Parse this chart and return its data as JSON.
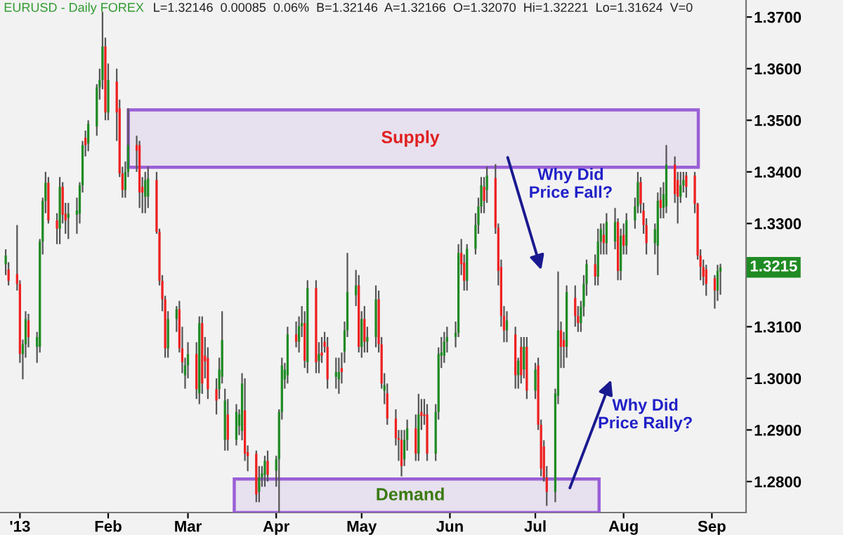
{
  "chart_data": {
    "type": "candlestick",
    "title": "EURUSD - Daily FOREX",
    "subtitle": "L=1.32146  0.00085  0.06%  B=1.32146  A=1.32166  O=1.32070  Hi=1.32221  Lo=1.31624  V=0",
    "colors": [
      "#1f8b24",
      "#f02020",
      "#f02020",
      "#f02020",
      "#1f8b24",
      "#1f8b24",
      "#f02020",
      "#1f8b24",
      "#1f8b24",
      "#1f8b24",
      "#1f8b24",
      "#f02020",
      "#f02020",
      "#1f8b24",
      "#f02020",
      "#f02020",
      "#1f8b24",
      "#1f8b24",
      "#1f8b24",
      "#1f8b24",
      "#f02020",
      "#1f8b24",
      "#1f8b24",
      "#1f8b24",
      "#1f8b24",
      "#f02020",
      "#1f8b24",
      "#f02020",
      "#f02020",
      "#f02020",
      "#1f8b24",
      "#1f8b24",
      "#f02020",
      "#f02020",
      "#f02020",
      "#1f8b24",
      "#1f8b24",
      "#f02020",
      "#f02020",
      "#f02020",
      "#f02020",
      "#1f8b24",
      "#1f8b24",
      "#f02020",
      "#f02020",
      "#1f8b24",
      "#1f8b24",
      "#f02020",
      "#1f8b24",
      "#f02020",
      "#f02020",
      "#f02020",
      "#f02020",
      "#1f8b24",
      "#1f8b24",
      "#1f8b24",
      "#f02020",
      "#1f8b24",
      "#1f8b24",
      "#1f8b24",
      "#f02020",
      "#f02020",
      "#f02020",
      "#1f8b24",
      "#1f8b24",
      "#1f8b24",
      "#f02020",
      "#1f8b24",
      "#1f8b24",
      "#1f8b24",
      "#1f8b24",
      "#1f8b24",
      "#f02020",
      "#1f8b24",
      "#1f8b24",
      "#f02020",
      "#1f8b24",
      "#f02020",
      "#1f8b24",
      "#f02020",
      "#f02020",
      "#f02020",
      "#1f8b24",
      "#1f8b24",
      "#f02020",
      "#1f8b24",
      "#1f8b24",
      "#1f8b24",
      "#f02020",
      "#1f8b24",
      "#f02020",
      "#1f8b24",
      "#1f8b24",
      "#f02020",
      "#f02020",
      "#1f8b24",
      "#f02020",
      "#f02020",
      "#f02020",
      "#f02020",
      "#1f8b24",
      "#1f8b24",
      "#f02020",
      "#1f8b24",
      "#f02020",
      "#f02020",
      "#f02020",
      "#1f8b24",
      "#1f8b24",
      "#1f8b24",
      "#1f8b24",
      "#1f8b24",
      "#1f8b24",
      "#1f8b24",
      "#f02020",
      "#f02020",
      "#1f8b24",
      "#1f8b24",
      "#1f8b24",
      "#1f8b24",
      "#f02020",
      "#1f8b24",
      "#f02020",
      "#f02020",
      "#f02020",
      "#f02020",
      "#1f8b24",
      "#f02020",
      "#1f8b24",
      "#f02020",
      "#1f8b24",
      "#f02020",
      "#1f8b24",
      "#f02020",
      "#f02020",
      "#f02020",
      "#f02020",
      "#1f8b24",
      "#1f8b24",
      "#f02020",
      "#f02020",
      "#1f8b24",
      "#f02020",
      "#f02020",
      "#1f8b24",
      "#1f8b24",
      "#1f8b24",
      "#f02020",
      "#1f8b24",
      "#1f8b24",
      "#f02020",
      "#1f8b24",
      "#1f8b24",
      "#f02020",
      "#1f8b24",
      "#f02020",
      "#1f8b24",
      "#1f8b24",
      "#1f8b24",
      "#f02020",
      "#f02020",
      "#f02020",
      "#1f8b24",
      "#1f8b24",
      "#f02020",
      "#1f8b24",
      "#1f8b24",
      "#f02020",
      "#f02020",
      "#1f8b24",
      "#1f8b24",
      "#f02020",
      "#f02020",
      "#f02020",
      "#f02020",
      "#f02020",
      "#f02020",
      "#f02020",
      "#1f8b24",
      "#1f8b24"
    ],
    "x": [
      "2012-12-27",
      "2012-12-28",
      "2012-12-31",
      "2013-01-01",
      "2013-01-02",
      "2013-01-03",
      "2013-01-04",
      "2013-01-07",
      "2013-01-08",
      "2013-01-09",
      "2013-01-10",
      "2013-01-11",
      "2013-01-14",
      "2013-01-15",
      "2013-01-16",
      "2013-01-17",
      "2013-01-18",
      "2013-01-21",
      "2013-01-22",
      "2013-01-23",
      "2013-01-24",
      "2013-01-25",
      "2013-01-28",
      "2013-01-29",
      "2013-01-30",
      "2013-01-31",
      "2013-02-01",
      "2013-02-04",
      "2013-02-05",
      "2013-02-06",
      "2013-02-07",
      "2013-02-08",
      "2013-02-11",
      "2013-02-12",
      "2013-02-13",
      "2013-02-14",
      "2013-02-15",
      "2013-02-18",
      "2013-02-19",
      "2013-02-20",
      "2013-02-21",
      "2013-02-22",
      "2013-02-25",
      "2013-02-26",
      "2013-02-27",
      "2013-02-28",
      "2013-03-01",
      "2013-03-04",
      "2013-03-05",
      "2013-03-06",
      "2013-03-07",
      "2013-03-08",
      "2013-03-11",
      "2013-03-12",
      "2013-03-13",
      "2013-03-14",
      "2013-03-15",
      "2013-03-18",
      "2013-03-19",
      "2013-03-20",
      "2013-03-21",
      "2013-03-22",
      "2013-03-25",
      "2013-03-26",
      "2013-03-27",
      "2013-03-28",
      "2013-03-29",
      "2013-04-01",
      "2013-04-02",
      "2013-04-03",
      "2013-04-04",
      "2013-04-05",
      "2013-04-08",
      "2013-04-09",
      "2013-04-10",
      "2013-04-11",
      "2013-04-12",
      "2013-04-15",
      "2013-04-16",
      "2013-04-17",
      "2013-04-18",
      "2013-04-19",
      "2013-04-22",
      "2013-04-23",
      "2013-04-24",
      "2013-04-25",
      "2013-04-26",
      "2013-04-29",
      "2013-04-30",
      "2013-05-01",
      "2013-05-02",
      "2013-05-03",
      "2013-05-06",
      "2013-05-07",
      "2013-05-08",
      "2013-05-09",
      "2013-05-10",
      "2013-05-13",
      "2013-05-14",
      "2013-05-15",
      "2013-05-16",
      "2013-05-17",
      "2013-05-20",
      "2013-05-21",
      "2013-05-22",
      "2013-05-23",
      "2013-05-24",
      "2013-05-27",
      "2013-05-28",
      "2013-05-29",
      "2013-05-30",
      "2013-05-31",
      "2013-06-03",
      "2013-06-04",
      "2013-06-05",
      "2013-06-06",
      "2013-06-07",
      "2013-06-10",
      "2013-06-11",
      "2013-06-12",
      "2013-06-13",
      "2013-06-14",
      "2013-06-17",
      "2013-06-18",
      "2013-06-19",
      "2013-06-20",
      "2013-06-21",
      "2013-06-24",
      "2013-06-25",
      "2013-06-26",
      "2013-06-27",
      "2013-06-28",
      "2013-07-01",
      "2013-07-02",
      "2013-07-03",
      "2013-07-04",
      "2013-07-05",
      "2013-07-08",
      "2013-07-09",
      "2013-07-10",
      "2013-07-11",
      "2013-07-12",
      "2013-07-15",
      "2013-07-16",
      "2013-07-17",
      "2013-07-18",
      "2013-07-19",
      "2013-07-22",
      "2013-07-23",
      "2013-07-24",
      "2013-07-25",
      "2013-07-26",
      "2013-07-29",
      "2013-07-30",
      "2013-07-31",
      "2013-08-01",
      "2013-08-02",
      "2013-08-05",
      "2013-08-06",
      "2013-08-07",
      "2013-08-08",
      "2013-08-09",
      "2013-08-12",
      "2013-08-13",
      "2013-08-14",
      "2013-08-15",
      "2013-08-16",
      "2013-08-19",
      "2013-08-20",
      "2013-08-21",
      "2013-08-22",
      "2013-08-23",
      "2013-08-26",
      "2013-08-27",
      "2013-08-28",
      "2013-08-29",
      "2013-08-30",
      "2013-09-02",
      "2013-09-03",
      "2013-09-04"
    ],
    "ohlc": [
      [
        1.3221,
        1.325,
        1.32,
        1.3238
      ],
      [
        1.3211,
        1.3225,
        1.318,
        1.3189
      ],
      [
        1.3202,
        1.3297,
        1.317,
        1.3183
      ],
      [
        1.3183,
        1.319,
        1.303,
        1.3047
      ],
      [
        1.3047,
        1.3075,
        1.2998,
        1.3066
      ],
      [
        1.3066,
        1.313,
        1.304,
        1.3115
      ],
      [
        1.3112,
        1.3125,
        1.306,
        1.308
      ],
      [
        1.3061,
        1.309,
        1.303,
        1.308
      ],
      [
        1.3061,
        1.327,
        1.305,
        1.3265
      ],
      [
        1.3265,
        1.335,
        1.324,
        1.3344
      ],
      [
        1.3344,
        1.34,
        1.332,
        1.3379
      ],
      [
        1.3379,
        1.339,
        1.33,
        1.3306
      ],
      [
        1.3306,
        1.332,
        1.326,
        1.329
      ],
      [
        1.329,
        1.339,
        1.326,
        1.3371
      ],
      [
        1.3371,
        1.338,
        1.33,
        1.3317
      ],
      [
        1.3319,
        1.334,
        1.328,
        1.3306
      ],
      [
        1.3311,
        1.334,
        1.327,
        1.3319
      ],
      [
        1.3317,
        1.335,
        1.328,
        1.3325
      ],
      [
        1.3319,
        1.338,
        1.33,
        1.3374
      ],
      [
        1.3374,
        1.346,
        1.336,
        1.3452
      ],
      [
        1.3466,
        1.348,
        1.343,
        1.3452
      ],
      [
        1.3455,
        1.35,
        1.344,
        1.3493
      ],
      [
        1.3488,
        1.357,
        1.347,
        1.3564
      ],
      [
        1.3564,
        1.36,
        1.354,
        1.3578
      ],
      [
        1.3578,
        1.371,
        1.356,
        1.3643
      ],
      [
        1.3643,
        1.366,
        1.35,
        1.3515
      ],
      [
        1.3515,
        1.361,
        1.35,
        1.3578
      ],
      [
        1.3575,
        1.36,
        1.346,
        1.3515
      ],
      [
        1.3523,
        1.354,
        1.339,
        1.3397
      ],
      [
        1.3397,
        1.341,
        1.335,
        1.3365
      ],
      [
        1.3365,
        1.342,
        1.335,
        1.34
      ],
      [
        1.34,
        1.3523,
        1.339,
        1.3452
      ],
      [
        1.3452,
        1.347,
        1.34,
        1.3441
      ],
      [
        1.3452,
        1.346,
        1.333,
        1.336
      ],
      [
        1.3371,
        1.339,
        1.332,
        1.336
      ],
      [
        1.3352,
        1.34,
        1.332,
        1.3384
      ],
      [
        1.3352,
        1.341,
        1.333,
        1.3387
      ],
      [
        1.3384,
        1.34,
        1.328,
        1.3284
      ],
      [
        1.3284,
        1.329,
        1.318,
        1.3189
      ],
      [
        1.3189,
        1.32,
        1.313,
        1.3153
      ],
      [
        1.3153,
        1.316,
        1.304,
        1.3058
      ],
      [
        1.3058,
        1.313,
        1.304,
        1.3115
      ],
      [
        1.3115,
        1.314,
        1.309,
        1.3134
      ],
      [
        1.3134,
        1.315,
        1.305,
        1.3058
      ],
      [
        1.3058,
        1.31,
        1.301,
        1.3031
      ],
      [
        1.3006,
        1.304,
        1.298,
        1.3025
      ],
      [
        1.3025,
        1.307,
        1.3,
        1.3047
      ],
      [
        1.3047,
        1.307,
        1.296,
        1.2979
      ],
      [
        1.2971,
        1.312,
        1.295,
        1.3107
      ],
      [
        1.3107,
        1.312,
        1.297,
        1.299
      ],
      [
        1.3044,
        1.308,
        1.3,
        1.3033
      ],
      [
        1.3039,
        1.306,
        1.296,
        1.2979
      ],
      [
        1.2979,
        1.3,
        1.293,
        1.2957
      ],
      [
        1.2979,
        1.304,
        1.296,
        1.3017
      ],
      [
        1.3003,
        1.313,
        1.299,
        1.3074
      ],
      [
        1.2881,
        1.298,
        1.286,
        1.2957
      ],
      [
        1.293,
        1.296,
        1.286,
        1.2881
      ],
      [
        1.2881,
        1.295,
        1.287,
        1.2935
      ],
      [
        1.2908,
        1.294,
        1.289,
        1.293
      ],
      [
        1.2898,
        1.301,
        1.288,
        1.299
      ],
      [
        1.2938,
        1.3,
        1.284,
        1.2854
      ],
      [
        1.2857,
        1.287,
        1.282,
        1.2849
      ],
      [
        1.2854,
        1.286,
        1.276,
        1.2775
      ],
      [
        1.278,
        1.283,
        1.276,
        1.2808
      ],
      [
        1.2808,
        1.283,
        1.279,
        1.2816
      ],
      [
        1.2813,
        1.285,
        1.279,
        1.284
      ],
      [
        1.284,
        1.286,
        1.28,
        1.2813
      ],
      [
        1.2821,
        1.285,
        1.279,
        1.2843
      ],
      [
        1.2843,
        1.294,
        1.274,
        1.2935
      ],
      [
        1.2935,
        1.304,
        1.292,
        1.3025
      ],
      [
        1.2998,
        1.303,
        1.298,
        1.3017
      ],
      [
        1.3006,
        1.31,
        1.299,
        1.3085
      ],
      [
        1.3085,
        1.311,
        1.306,
        1.3071
      ],
      [
        1.3071,
        1.312,
        1.305,
        1.3101
      ],
      [
        1.3101,
        1.314,
        1.308,
        1.3107
      ],
      [
        1.3107,
        1.313,
        1.302,
        1.3034
      ],
      [
        1.3031,
        1.319,
        1.301,
        1.3175
      ],
      [
        1.3175,
        1.319,
        1.301,
        1.3031
      ],
      [
        1.3034,
        1.307,
        1.301,
        1.3047
      ],
      [
        1.305,
        1.308,
        1.303,
        1.3044
      ],
      [
        1.3071,
        1.309,
        1.305,
        1.3061
      ],
      [
        1.3061,
        1.308,
        1.298,
        1.2998
      ],
      [
        1.3003,
        1.304,
        1.298,
        1.3012
      ],
      [
        1.2998,
        1.304,
        1.297,
        1.3012
      ],
      [
        1.302,
        1.305,
        1.299,
        1.3012
      ],
      [
        1.3052,
        1.311,
        1.303,
        1.3093
      ],
      [
        1.3093,
        1.3243,
        1.308,
        1.3167
      ],
      [
        1.3161,
        1.321,
        1.314,
        1.318
      ],
      [
        1.318,
        1.32,
        1.305,
        1.3061
      ],
      [
        1.3061,
        1.313,
        1.304,
        1.3115
      ],
      [
        1.3115,
        1.314,
        1.305,
        1.3071
      ],
      [
        1.3071,
        1.31,
        1.305,
        1.308
      ],
      [
        1.308,
        1.318,
        1.306,
        1.3153
      ],
      [
        1.3153,
        1.317,
        1.305,
        1.3066
      ],
      [
        1.3066,
        1.308,
        1.298,
        1.299
      ],
      [
        1.2976,
        1.301,
        1.295,
        1.2987
      ],
      [
        1.2971,
        1.299,
        1.291,
        1.2922
      ],
      [
        1.2922,
        1.294,
        1.287,
        1.2884
      ],
      [
        1.2884,
        1.29,
        1.284,
        1.2881
      ],
      [
        1.2881,
        1.29,
        1.281,
        1.283
      ],
      [
        1.2843,
        1.29,
        1.283,
        1.2881
      ],
      [
        1.2881,
        1.292,
        1.286,
        1.2903
      ],
      [
        1.2903,
        1.293,
        1.284,
        1.2854
      ],
      [
        1.2854,
        1.297,
        1.284,
        1.293
      ],
      [
        1.2935,
        1.296,
        1.29,
        1.2927
      ],
      [
        1.293,
        1.296,
        1.291,
        1.2927
      ],
      [
        1.293,
        1.295,
        1.284,
        1.2854
      ],
      [
        1.2854,
        1.295,
        1.284,
        1.2935
      ],
      [
        1.2935,
        1.306,
        1.292,
        1.3047
      ],
      [
        1.3044,
        1.308,
        1.302,
        1.305
      ],
      [
        1.3044,
        1.309,
        1.303,
        1.3071
      ],
      [
        1.3071,
        1.31,
        1.305,
        1.308
      ],
      [
        1.308,
        1.311,
        1.306,
        1.3088
      ],
      [
        1.3088,
        1.326,
        1.308,
        1.3243
      ],
      [
        1.3243,
        1.327,
        1.32,
        1.3221
      ],
      [
        1.3224,
        1.324,
        1.317,
        1.3189
      ],
      [
        1.3189,
        1.326,
        1.317,
        1.3251
      ],
      [
        1.3251,
        1.332,
        1.324,
        1.3297
      ],
      [
        1.3297,
        1.335,
        1.328,
        1.3333
      ],
      [
        1.3333,
        1.339,
        1.332,
        1.3374
      ],
      [
        1.3371,
        1.339,
        1.332,
        1.3344
      ],
      [
        1.3365,
        1.341,
        1.334,
        1.3393
      ],
      [
        1.3388,
        1.3415,
        1.328,
        1.3292
      ],
      [
        1.3292,
        1.33,
        1.318,
        1.3208
      ],
      [
        1.3216,
        1.323,
        1.31,
        1.3121
      ],
      [
        1.3121,
        1.314,
        1.307,
        1.3093
      ],
      [
        1.3093,
        1.313,
        1.307,
        1.3112
      ],
      [
        1.3085,
        1.31,
        1.298,
        1.3006
      ],
      [
        1.3006,
        1.304,
        1.298,
        1.3034
      ],
      [
        1.3061,
        1.308,
        1.299,
        1.3006
      ],
      [
        1.3017,
        1.308,
        1.3,
        1.3061
      ],
      [
        1.3061,
        1.308,
        1.296,
        1.2976
      ],
      [
        1.2976,
        1.303,
        1.296,
        1.3017
      ],
      [
        1.3025,
        1.304,
        1.29,
        1.291
      ],
      [
        1.291,
        1.292,
        1.281,
        1.2825
      ],
      [
        1.2868,
        1.288,
        1.28,
        1.2808
      ],
      [
        1.2808,
        1.283,
        1.2753,
        1.278
      ],
      [
        1.278,
        1.298,
        1.276,
        1.2971
      ],
      [
        1.2966,
        1.3207,
        1.295,
        1.3093
      ],
      [
        1.3093,
        1.311,
        1.302,
        1.3061
      ],
      [
        1.3074,
        1.309,
        1.302,
        1.3061
      ],
      [
        1.3061,
        1.318,
        1.304,
        1.3167
      ],
      [
        1.3156,
        1.318,
        1.31,
        1.3121
      ],
      [
        1.3121,
        1.314,
        1.309,
        1.3107
      ],
      [
        1.3107,
        1.315,
        1.309,
        1.3139
      ],
      [
        1.3139,
        1.32,
        1.312,
        1.3183
      ],
      [
        1.3183,
        1.323,
        1.316,
        1.3221
      ],
      [
        1.3221,
        1.324,
        1.318,
        1.3197
      ],
      [
        1.3197,
        1.329,
        1.318,
        1.3265
      ],
      [
        1.3265,
        1.33,
        1.324,
        1.3289
      ],
      [
        1.3278,
        1.33,
        1.324,
        1.3262
      ],
      [
        1.3262,
        1.332,
        1.324,
        1.3303
      ],
      [
        1.3265,
        1.333,
        1.325,
        1.3303
      ],
      [
        1.3303,
        1.331,
        1.319,
        1.3208
      ],
      [
        1.3208,
        1.329,
        1.319,
        1.3276
      ],
      [
        1.3278,
        1.33,
        1.324,
        1.3257
      ],
      [
        1.3257,
        1.332,
        1.324,
        1.3306
      ],
      [
        1.3306,
        1.335,
        1.329,
        1.3333
      ],
      [
        1.3333,
        1.34,
        1.332,
        1.338
      ],
      [
        1.338,
        1.339,
        1.332,
        1.3338
      ],
      [
        1.3325,
        1.334,
        1.328,
        1.3297
      ],
      [
        1.3297,
        1.331,
        1.324,
        1.3262
      ],
      [
        1.3262,
        1.33,
        1.324,
        1.3289
      ],
      [
        1.3257,
        1.336,
        1.32,
        1.3344
      ],
      [
        1.3346,
        1.337,
        1.331,
        1.333
      ],
      [
        1.333,
        1.338,
        1.331,
        1.3357
      ],
      [
        1.3333,
        1.3452,
        1.332,
        1.3414
      ],
      [
        1.3414,
        1.343,
        1.334,
        1.3357
      ],
      [
        1.3384,
        1.34,
        1.33,
        1.3352
      ],
      [
        1.3352,
        1.34,
        1.334,
        1.3374
      ],
      [
        1.3374,
        1.34,
        1.336,
        1.3384
      ],
      [
        1.3393,
        1.34,
        1.335,
        1.3371
      ],
      [
        1.3393,
        1.34,
        1.332,
        1.3338
      ],
      [
        1.3338,
        1.334,
        1.323,
        1.3238
      ],
      [
        1.3238,
        1.325,
        1.319,
        1.3216
      ],
      [
        1.3216,
        1.323,
        1.318,
        1.3197
      ],
      [
        1.3211,
        1.322,
        1.316,
        1.3183
      ],
      [
        1.3194,
        1.32,
        1.3135,
        1.317
      ],
      [
        1.317,
        1.322,
        1.315,
        1.3208
      ],
      [
        1.3207,
        1.3222,
        1.3162,
        1.3215
      ]
    ],
    "xlim": [
      "2012-12-25",
      "2013-09-13"
    ],
    "xticks": [
      {
        "value": "2013-01-01",
        "label": "'13"
      },
      {
        "value": "2013-02-01",
        "label": "Feb"
      },
      {
        "value": "2013-03-01",
        "label": "Mar"
      },
      {
        "value": "2013-04-01",
        "label": "Apr"
      },
      {
        "value": "2013-05-01",
        "label": "May"
      },
      {
        "value": "2013-06-01",
        "label": "Jun"
      },
      {
        "value": "2013-07-01",
        "label": "Jul"
      },
      {
        "value": "2013-08-01",
        "label": "Aug"
      },
      {
        "value": "2013-09-01",
        "label": "Sep"
      }
    ],
    "ylim": [
      1.274,
      1.3733
    ],
    "yticks": [
      {
        "value": 1.28,
        "label": "1.2800"
      },
      {
        "value": 1.29,
        "label": "1.2900"
      },
      {
        "value": 1.3,
        "label": "1.3000"
      },
      {
        "value": 1.31,
        "label": "1.3100"
      },
      {
        "value": 1.32,
        "label": null
      },
      {
        "value": 1.33,
        "label": "1.3300"
      },
      {
        "value": 1.34,
        "label": "1.3400"
      },
      {
        "value": 1.35,
        "label": "1.3500"
      },
      {
        "value": 1.36,
        "label": "1.3600"
      },
      {
        "value": 1.37,
        "label": "1.3700"
      }
    ],
    "bands": [
      {
        "axis": "y",
        "from": 1.3409,
        "to": 1.352,
        "label": "Supply",
        "color": "#9a5fd6"
      },
      {
        "axis": "y",
        "from": 1.274,
        "to": 1.2805,
        "label": "Demand",
        "color": "#9a5fd6"
      }
    ],
    "annotations": [
      "Why Did\nPrice Fall?",
      "Why Did\nPrice Rally?",
      {
        "text": "1.3215",
        "y": 1.3215
      }
    ],
    "grid": false,
    "legend": false
  }
}
